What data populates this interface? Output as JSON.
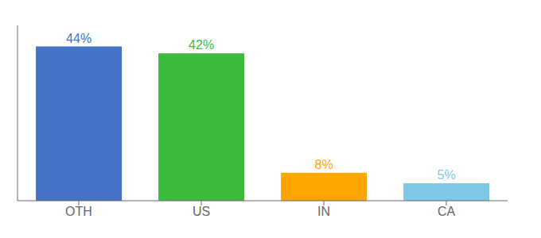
{
  "chart_data": {
    "type": "bar",
    "categories": [
      "OTH",
      "US",
      "IN",
      "CA"
    ],
    "values": [
      44,
      42,
      8,
      5
    ],
    "value_labels": [
      "44%",
      "42%",
      "8%",
      "5%"
    ],
    "colors": [
      "#4472c4",
      "#3dbb3d",
      "#ffa500",
      "#7ec8e3"
    ],
    "data_labels": true,
    "ylim": [
      0,
      50
    ],
    "grid": false,
    "tick_labels": "x"
  }
}
